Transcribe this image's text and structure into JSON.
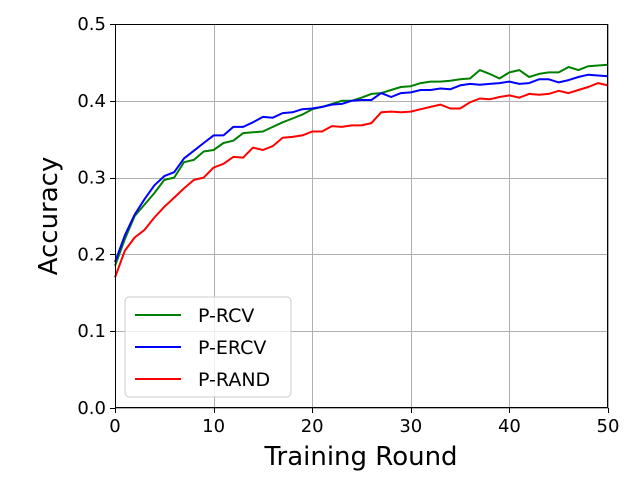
{
  "chart_data": {
    "type": "line",
    "xlabel": "Training Round",
    "ylabel": "Accuracy",
    "xlim": [
      0,
      50
    ],
    "ylim": [
      0.0,
      0.5
    ],
    "xticks": [
      0,
      10,
      20,
      30,
      40,
      50
    ],
    "xtick_labels": [
      "0",
      "10",
      "20",
      "30",
      "40",
      "50"
    ],
    "yticks": [
      0.0,
      0.1,
      0.2,
      0.3,
      0.4,
      0.5
    ],
    "ytick_labels": [
      "0.0",
      "0.1",
      "0.2",
      "0.3",
      "0.4",
      "0.5"
    ],
    "grid": true,
    "legend_position": "lower-left",
    "x": [
      0,
      1,
      2,
      3,
      4,
      5,
      6,
      7,
      8,
      9,
      10,
      11,
      12,
      13,
      14,
      15,
      16,
      17,
      18,
      19,
      20,
      21,
      22,
      23,
      24,
      25,
      26,
      27,
      28,
      29,
      30,
      31,
      32,
      33,
      34,
      35,
      36,
      37,
      38,
      39,
      40,
      41,
      42,
      43,
      44,
      45,
      46,
      47,
      48,
      49,
      50
    ],
    "series": [
      {
        "name": "P-RCV",
        "color": "#008000",
        "values": [
          0.185,
          0.22,
          0.25,
          0.265,
          0.28,
          0.297,
          0.3,
          0.32,
          0.323,
          0.334,
          0.336,
          0.345,
          0.348,
          0.358,
          0.359,
          0.36,
          0.366,
          0.372,
          0.377,
          0.382,
          0.389,
          0.392,
          0.396,
          0.4,
          0.4,
          0.404,
          0.409,
          0.41,
          0.414,
          0.418,
          0.419,
          0.423,
          0.425,
          0.425,
          0.426,
          0.428,
          0.429,
          0.44,
          0.435,
          0.429,
          0.437,
          0.44,
          0.431,
          0.435,
          0.437,
          0.437,
          0.444,
          0.44,
          0.445,
          0.446,
          0.447
        ]
      },
      {
        "name": "P-ERCV",
        "color": "#0000ff",
        "values": [
          0.19,
          0.225,
          0.252,
          0.272,
          0.29,
          0.302,
          0.307,
          0.325,
          0.335,
          0.345,
          0.355,
          0.355,
          0.366,
          0.366,
          0.372,
          0.379,
          0.378,
          0.384,
          0.385,
          0.389,
          0.39,
          0.392,
          0.395,
          0.396,
          0.4,
          0.401,
          0.401,
          0.41,
          0.405,
          0.41,
          0.411,
          0.414,
          0.414,
          0.416,
          0.415,
          0.42,
          0.422,
          0.421,
          0.422,
          0.423,
          0.425,
          0.422,
          0.423,
          0.428,
          0.428,
          0.424,
          0.427,
          0.431,
          0.434,
          0.433,
          0.432
        ]
      },
      {
        "name": "P-RAND",
        "color": "#ff0000",
        "values": [
          0.17,
          0.205,
          0.222,
          0.232,
          0.248,
          0.262,
          0.274,
          0.286,
          0.297,
          0.3,
          0.313,
          0.318,
          0.327,
          0.326,
          0.339,
          0.336,
          0.341,
          0.352,
          0.353,
          0.355,
          0.36,
          0.36,
          0.367,
          0.366,
          0.368,
          0.368,
          0.371,
          0.385,
          0.386,
          0.385,
          0.386,
          0.389,
          0.392,
          0.395,
          0.39,
          0.39,
          0.398,
          0.403,
          0.402,
          0.405,
          0.407,
          0.404,
          0.409,
          0.408,
          0.409,
          0.413,
          0.41,
          0.414,
          0.418,
          0.423,
          0.42
        ]
      }
    ]
  }
}
